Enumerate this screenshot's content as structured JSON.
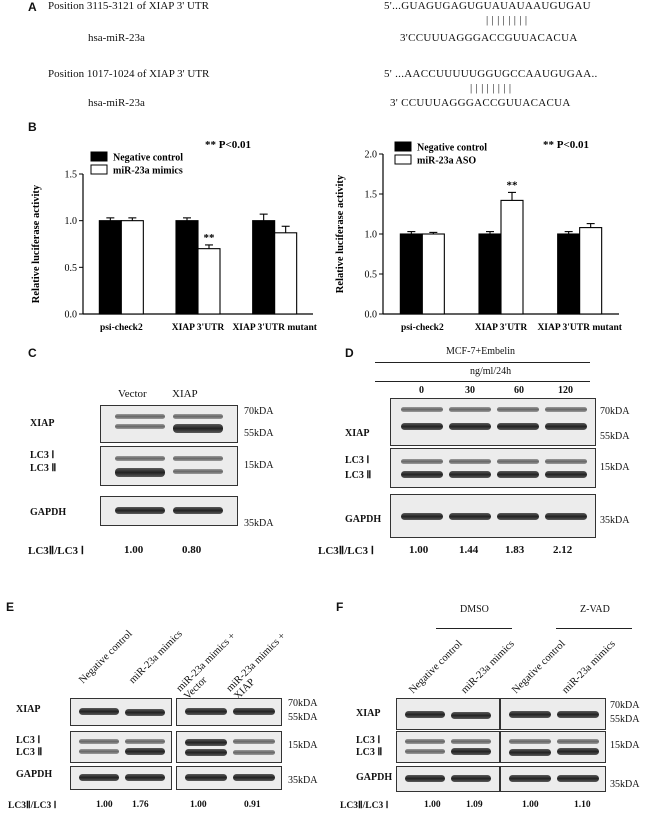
{
  "panelA": {
    "label": "A",
    "site1": {
      "position": "Position 3115-3121 of XIAP 3' UTR",
      "mirna": "hsa-miR-23a",
      "utr_seq": "5'...GUAGUGAGUGUAUAUAAUGUGAU",
      "pairs": "| | | | | | | |",
      "mir_seq": "3'CCUUUAGGGACCGUUACACUA"
    },
    "site2": {
      "position": "Position 1017-1024 of XIAP 3' UTR",
      "mirna": "hsa-miR-23a",
      "utr_seq": "5' ...AACCUUUUUGGUGCCAAUGUGAA..",
      "pairs": "| |     | | | | | |",
      "mir_seq": "3'    CCUUUAGGGACCGUUACACUA"
    }
  },
  "panelB": {
    "label": "B",
    "chart_data": [
      {
        "type": "bar",
        "ylabel": "Relative luciferase activity",
        "ylim": [
          0,
          1.5
        ],
        "yticks": [
          "0.0",
          "0.5",
          "1.0",
          "1.5"
        ],
        "categories": [
          "psi-check2",
          "XIAP 3'UTR",
          "XIAP 3'UTR mutant"
        ],
        "series": [
          {
            "name": "Negative control",
            "values": [
              1.0,
              1.0,
              1.0
            ],
            "errors": [
              0.03,
              0.03,
              0.07
            ],
            "color": "#000000"
          },
          {
            "name": "miR-23a mimics",
            "values": [
              1.0,
              0.7,
              0.87
            ],
            "errors": [
              0.03,
              0.04,
              0.07
            ],
            "color": "#ffffff"
          }
        ],
        "significance": "**",
        "annotation": "** P<0.01"
      },
      {
        "type": "bar",
        "ylabel": "Relative luciferase activity",
        "ylim": [
          0,
          2.0
        ],
        "yticks": [
          "0.0",
          "0.5",
          "1.0",
          "1.5",
          "2.0"
        ],
        "categories": [
          "psi-check2",
          "XIAP 3'UTR",
          "XIAP 3'UTR mutant"
        ],
        "series": [
          {
            "name": "Negative control",
            "values": [
              1.0,
              1.0,
              1.0
            ],
            "errors": [
              0.03,
              0.03,
              0.03
            ],
            "color": "#000000"
          },
          {
            "name": "miR-23a ASO",
            "values": [
              1.0,
              1.42,
              1.08
            ],
            "errors": [
              0.02,
              0.1,
              0.05
            ],
            "color": "#ffffff"
          }
        ],
        "significance": "**",
        "annotation": "** P<0.01"
      }
    ]
  },
  "panelC": {
    "label": "C",
    "lanes": [
      "Vector",
      "XIAP"
    ],
    "rows": [
      "XIAP",
      "LC3 Ⅰ",
      "LC3 Ⅱ",
      "GAPDH"
    ],
    "markers": [
      "70kDA",
      "55kDA",
      "15kDA",
      "35kDA"
    ],
    "ratio_label": "LC3Ⅱ/LC3 Ⅰ",
    "ratios": [
      "1.00",
      "0.80"
    ]
  },
  "panelD": {
    "label": "D",
    "treatment": "MCF-7+Embelin",
    "unit": "ng/ml/24h",
    "doses": [
      "0",
      "30",
      "60",
      "120"
    ],
    "rows": [
      "XIAP",
      "LC3 Ⅰ",
      "LC3 Ⅱ",
      "GAPDH"
    ],
    "markers": [
      "70kDA",
      "55kDA",
      "15kDA",
      "35kDA"
    ],
    "ratio_label": "LC3Ⅱ/LC3 Ⅰ",
    "ratios": [
      "1.00",
      "1.44",
      "1.83",
      "2.12"
    ]
  },
  "panelE": {
    "label": "E",
    "lanes": [
      "Negative control",
      "miR-23a mimics",
      "miR-23a mimics + Vector",
      "miR-23a mimics + XIAP"
    ],
    "rows": [
      "XIAP",
      "LC3 Ⅰ",
      "LC3 Ⅱ",
      "GAPDH"
    ],
    "markers": [
      "70kDA",
      "55kDA",
      "15kDA",
      "35kDA"
    ],
    "ratio_label": "LC3Ⅱ/LC3 Ⅰ",
    "ratios": [
      "1.00",
      "1.76",
      "1.00",
      "0.91"
    ]
  },
  "panelF": {
    "label": "F",
    "groups": [
      "DMSO",
      "Z-VAD"
    ],
    "lanes": [
      "Negative control",
      "miR-23a mimics",
      "Negative control",
      "miR-23a mimics"
    ],
    "rows": [
      "XIAP",
      "LC3 Ⅰ",
      "LC3 Ⅱ",
      "GAPDH"
    ],
    "markers": [
      "70kDA",
      "55kDA",
      "15kDA",
      "35kDA"
    ],
    "ratio_label": "LC3Ⅱ/LC3 Ⅰ",
    "ratios": [
      "1.00",
      "1.09",
      "1.00",
      "1.10"
    ]
  }
}
